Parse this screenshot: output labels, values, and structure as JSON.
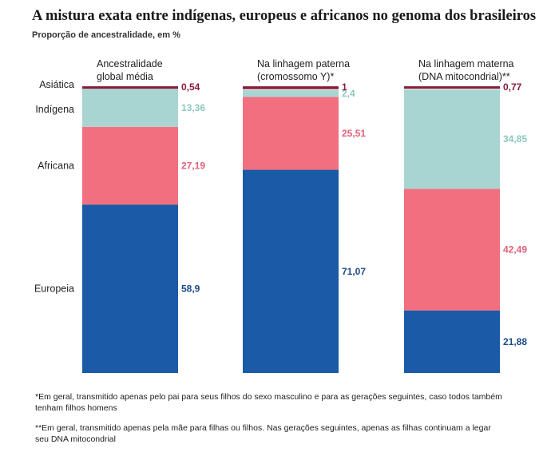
{
  "header": {
    "title": "A mistura exata entre indígenas, europeus e africanos no genoma dos brasileiros",
    "subtitle": "Proporção de ancestralidade, em %"
  },
  "chart_data": {
    "type": "stacked-bar",
    "title": "A mistura exata entre indígenas, europeus e africanos no genoma dos brasileiros",
    "ylabel": "Proporção de ancestralidade, em %",
    "ylim": [
      0,
      100
    ],
    "categories": [
      [
        "Ancestralidade",
        "global média"
      ],
      [
        "Na linhagem paterna",
        "(cromossomo Y)*"
      ],
      [
        "Na linhagem materna",
        "(DNA mitocondrial)**"
      ]
    ],
    "series": [
      {
        "name": "Europeia",
        "color": "#1a5aa6",
        "label_color": "#1a4a8a",
        "values": [
          58.9,
          71.07,
          21.88
        ],
        "labels": [
          "58,9",
          "71,07",
          "21,88"
        ]
      },
      {
        "name": "Africana",
        "color": "#f26f80",
        "label_color": "#e0607a",
        "values": [
          27.19,
          25.51,
          42.49
        ],
        "labels": [
          "27,19",
          "25,51",
          "42,49"
        ]
      },
      {
        "name": "Indígena",
        "color": "#a8d5d1",
        "label_color": "#8cc7c1",
        "values": [
          13.36,
          2.4,
          34.85
        ],
        "labels": [
          "13,36",
          "2,4",
          "34,85"
        ]
      },
      {
        "name": "Asiática",
        "color": "#8a1c3c",
        "label_color": "#8a1c3c",
        "values": [
          0.54,
          1,
          0.77
        ],
        "labels": [
          "0,54",
          "1",
          "0,77"
        ]
      }
    ],
    "legend": "left"
  },
  "notes": {
    "note1": "*Em geral, transmitido apenas pelo pai para seus filhos do sexo masculino e para as gerações seguintes, caso todos também tenham filhos homens",
    "note2": "**Em geral, transmitido apenas pela mãe para filhas ou filhos. Nas gerações seguintes, apenas as filhas continuam a legar seu DNA mitocondrial"
  }
}
